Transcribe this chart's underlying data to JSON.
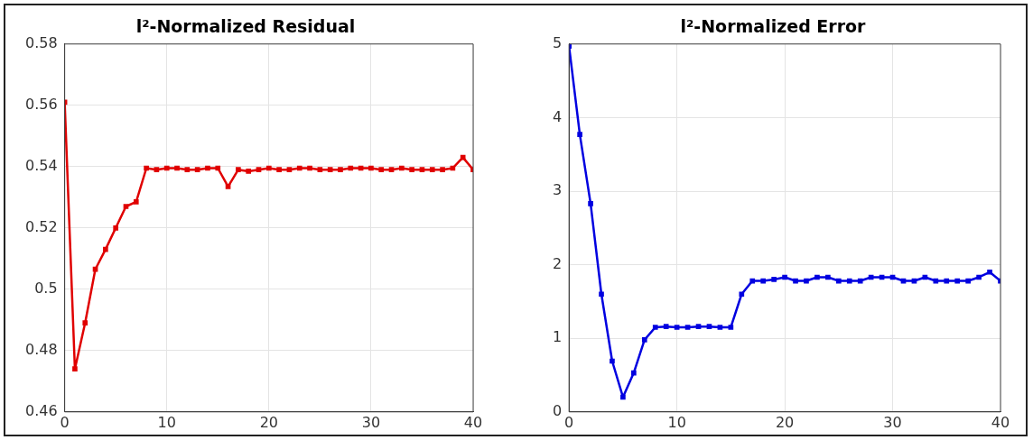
{
  "chart_data": [
    {
      "type": "line",
      "title": "l²-Normalized Residual",
      "x": [
        0,
        1,
        2,
        3,
        4,
        5,
        6,
        7,
        8,
        9,
        10,
        11,
        12,
        13,
        14,
        15,
        16,
        17,
        18,
        19,
        20,
        21,
        22,
        23,
        24,
        25,
        26,
        27,
        28,
        29,
        30,
        31,
        32,
        33,
        34,
        35,
        36,
        37,
        38,
        39,
        40
      ],
      "series": [
        {
          "color": "#e00000",
          "values": [
            0.561,
            0.474,
            0.489,
            0.5065,
            0.513,
            0.52,
            0.527,
            0.5285,
            0.5395,
            0.539,
            0.5395,
            0.5395,
            0.539,
            0.539,
            0.5395,
            0.5395,
            0.5335,
            0.539,
            0.5385,
            0.539,
            0.5395,
            0.539,
            0.539,
            0.5395,
            0.5395,
            0.539,
            0.539,
            0.539,
            0.5395,
            0.5395,
            0.5395,
            0.539,
            0.539,
            0.5395,
            0.539,
            0.539,
            0.539,
            0.539,
            0.5395,
            0.543,
            0.539
          ]
        }
      ],
      "xlim": [
        0,
        40
      ],
      "xticks": [
        0,
        10,
        20,
        30,
        40
      ],
      "ylim": [
        0.46,
        0.58
      ],
      "yticks": [
        {
          "value": 0.46,
          "label": "0.46"
        },
        {
          "value": 0.48,
          "label": "0.48"
        },
        {
          "value": 0.5,
          "label": "0.5"
        },
        {
          "value": 0.52,
          "label": "0.52"
        },
        {
          "value": 0.54,
          "label": "0.54"
        },
        {
          "value": 0.56,
          "label": "0.56"
        },
        {
          "value": 0.58,
          "label": "0.58"
        }
      ],
      "grid": true,
      "marker": "square",
      "line_style": "solid"
    },
    {
      "type": "line",
      "title": "l²-Normalized Error",
      "x": [
        0,
        1,
        2,
        3,
        4,
        5,
        6,
        7,
        8,
        9,
        10,
        11,
        12,
        13,
        14,
        15,
        16,
        17,
        18,
        19,
        20,
        21,
        22,
        23,
        24,
        25,
        26,
        27,
        28,
        29,
        30,
        31,
        32,
        33,
        34,
        35,
        36,
        37,
        38,
        39,
        40
      ],
      "series": [
        {
          "color": "#0000e0",
          "values": [
            4.97,
            3.77,
            2.83,
            1.6,
            0.69,
            0.2,
            0.53,
            0.98,
            1.15,
            1.16,
            1.15,
            1.15,
            1.16,
            1.16,
            1.15,
            1.15,
            1.6,
            1.78,
            1.78,
            1.8,
            1.83,
            1.78,
            1.78,
            1.83,
            1.83,
            1.78,
            1.78,
            1.78,
            1.83,
            1.83,
            1.83,
            1.78,
            1.78,
            1.83,
            1.78,
            1.78,
            1.78,
            1.78,
            1.83,
            1.9,
            1.78
          ]
        }
      ],
      "xlim": [
        0,
        40
      ],
      "xticks": [
        0,
        10,
        20,
        30,
        40
      ],
      "ylim": [
        0,
        5
      ],
      "yticks": [
        0,
        1,
        2,
        3,
        4,
        5
      ],
      "grid": true,
      "marker": "square",
      "line_style": "solid"
    }
  ]
}
